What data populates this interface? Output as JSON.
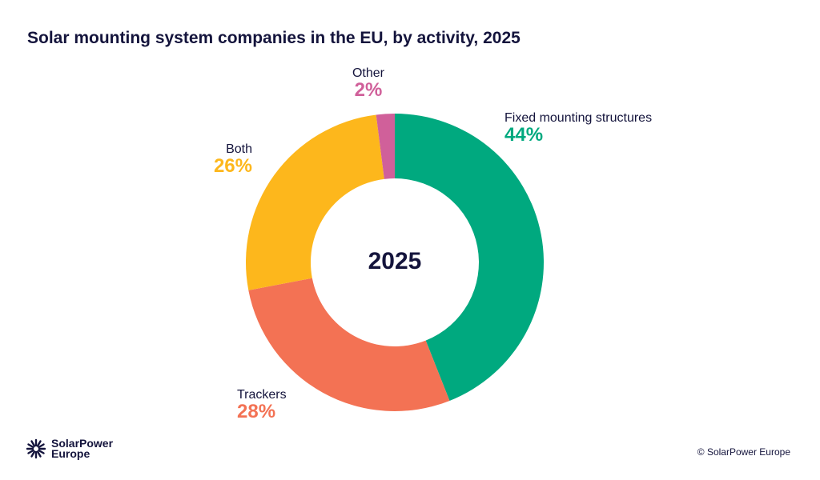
{
  "chart_data": {
    "type": "pie",
    "donut": true,
    "title": "Solar mounting system companies in the EU, by activity, 2025",
    "center_label": "2025",
    "slices": [
      {
        "label": "Fixed mounting structures",
        "value": 44,
        "display": "44%",
        "color": "#00a97f"
      },
      {
        "label": "Trackers",
        "value": 28,
        "display": "28%",
        "color": "#f37254"
      },
      {
        "label": "Both",
        "value": 26,
        "display": "26%",
        "color": "#fdb71c"
      },
      {
        "label": "Other",
        "value": 2,
        "display": "2%",
        "color": "#d0609a"
      }
    ]
  },
  "footer": {
    "logo_line1": "SolarPower",
    "logo_line2": "Europe",
    "copyright": "© SolarPower Europe"
  }
}
